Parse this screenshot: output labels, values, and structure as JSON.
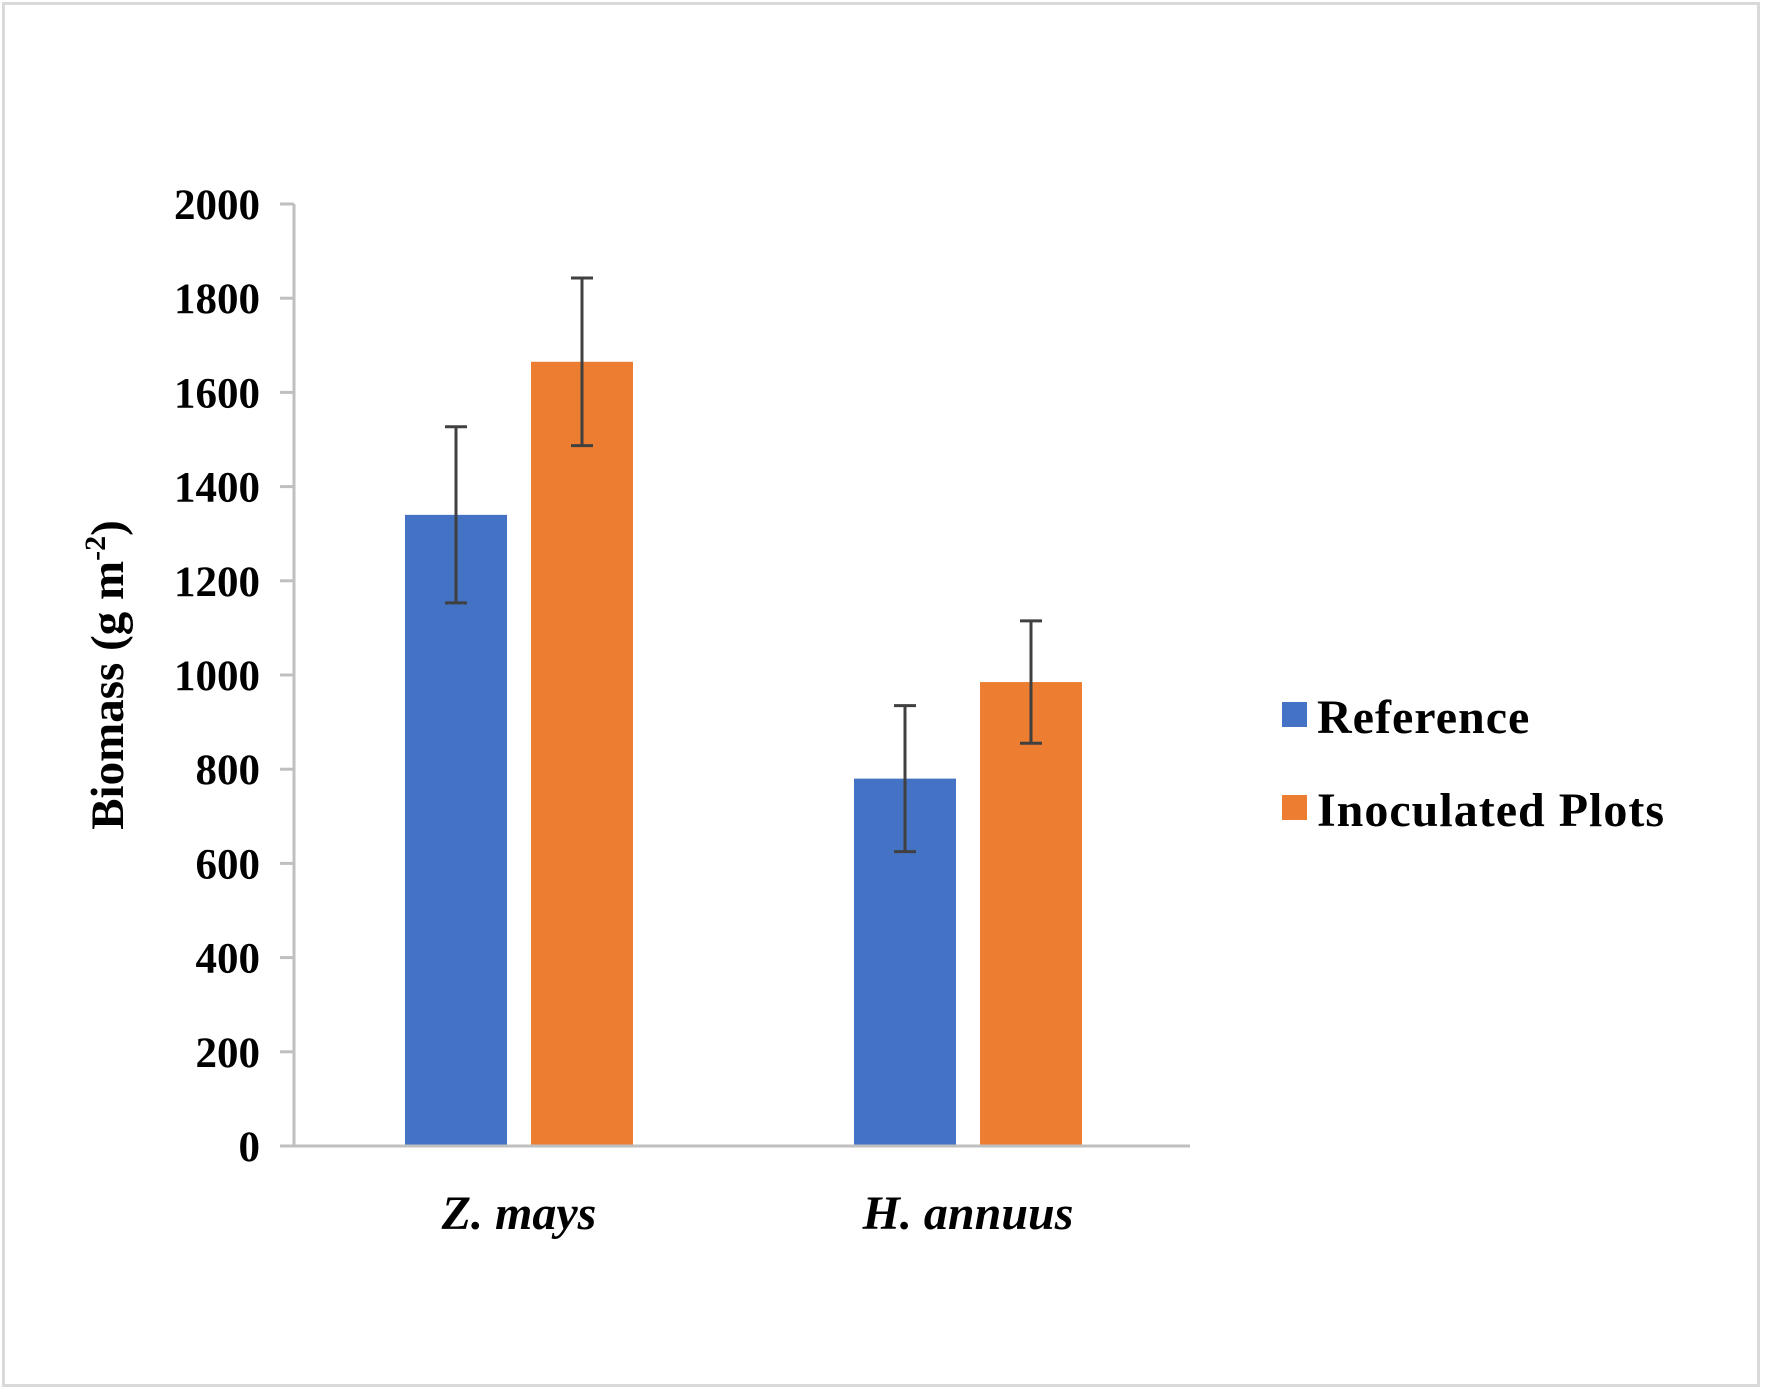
{
  "chart_data": {
    "type": "bar",
    "title": "",
    "xlabel": "",
    "ylabel": "Biomass (g m",
    "ylabel_sup": "-2",
    "ylabel_end": ")",
    "categories": [
      "Z. mays",
      "H. annuus"
    ],
    "ylim": [
      0,
      2000
    ],
    "yticks": [
      0,
      200,
      400,
      600,
      800,
      1000,
      1200,
      1400,
      1600,
      1800,
      2000
    ],
    "grid": false,
    "legend_position": "right",
    "series": [
      {
        "name": "Reference",
        "color": "#4472c4",
        "values": [
          1340,
          780
        ],
        "errors": [
          187,
          155
        ]
      },
      {
        "name": "Inoculated Plots",
        "color": "#ed7d31",
        "values": [
          1665,
          985
        ],
        "errors": [
          178,
          130
        ]
      }
    ]
  }
}
